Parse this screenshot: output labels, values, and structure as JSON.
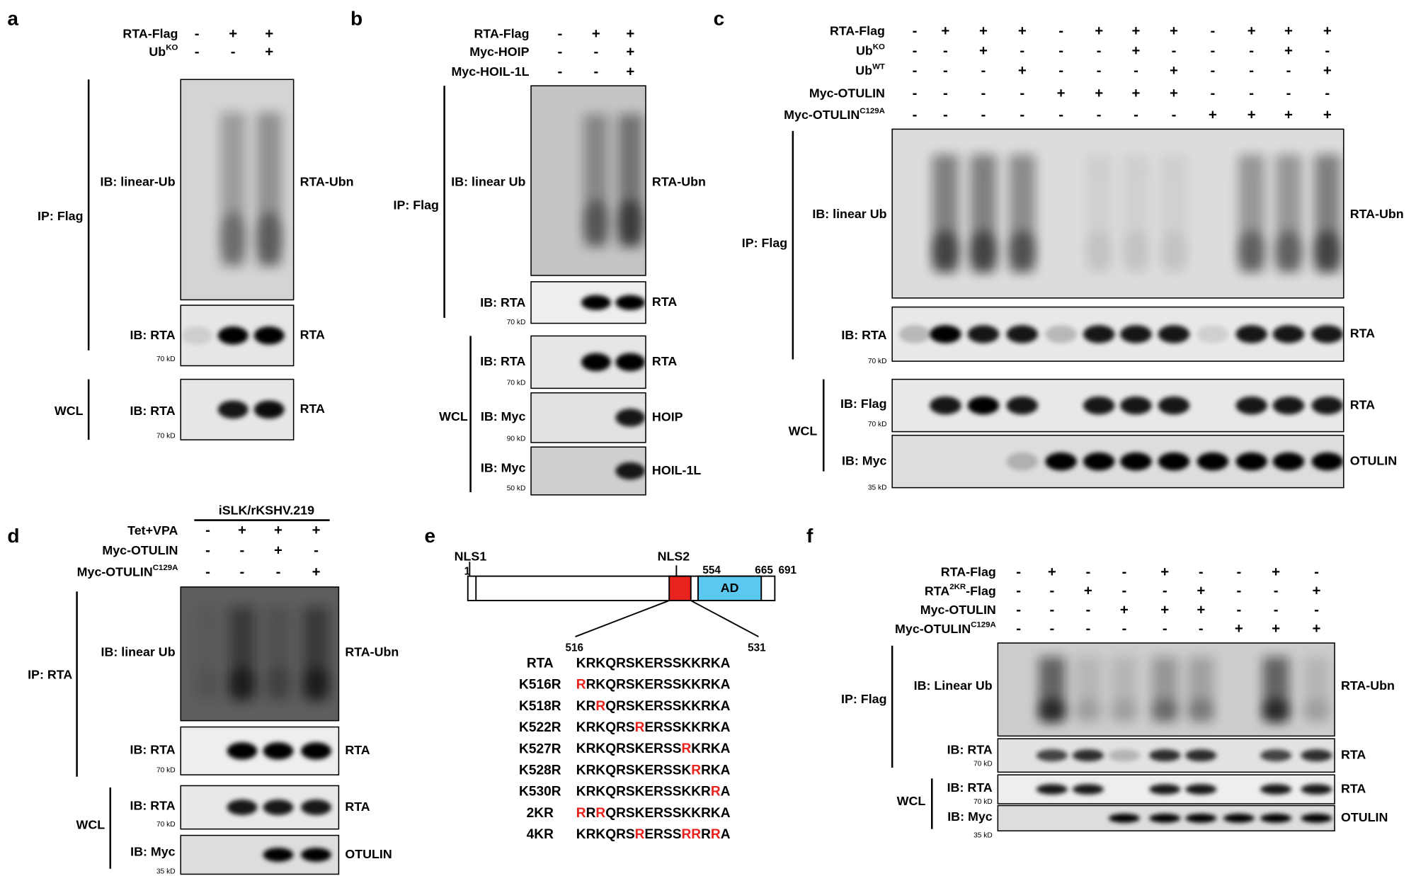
{
  "panels": [
    {
      "letter": "a",
      "conditions": [
        {
          "label": "RTA-Flag",
          "signs": [
            "-",
            "+",
            "+"
          ]
        },
        {
          "label": "Ub",
          "sup": "KO",
          "signs": [
            "-",
            "-",
            "+"
          ]
        }
      ],
      "blots": [
        {
          "ib": "IB: linear-Ub",
          "band": "RTA-Ubn"
        },
        {
          "ib": "IB: RTA",
          "kd": "70 kD",
          "band": "RTA"
        },
        {
          "ib": "IB: RTA",
          "kd": "70 kD",
          "band": "RTA"
        }
      ],
      "groups": [
        "IP: Flag",
        "WCL"
      ]
    },
    {
      "letter": "b",
      "conditions": [
        {
          "label": "RTA-Flag",
          "signs": [
            "-",
            "+",
            "+"
          ]
        },
        {
          "label": "Myc-HOIP",
          "signs": [
            "-",
            "-",
            "+"
          ]
        },
        {
          "label": "Myc-HOIL-1L",
          "signs": [
            "-",
            "-",
            "+"
          ]
        }
      ],
      "blots": [
        {
          "ib": "IB: linear Ub",
          "band": "RTA-Ubn"
        },
        {
          "ib": "IB: RTA",
          "kd": "70 kD",
          "band": "RTA"
        },
        {
          "ib": "IB: RTA",
          "kd": "70 kD",
          "band": "RTA"
        },
        {
          "ib": "IB: Myc",
          "kd": "90 kD",
          "band": "HOIP"
        },
        {
          "ib": "IB: Myc",
          "kd": "50 kD",
          "band": "HOIL-1L"
        }
      ],
      "groups": [
        "IP: Flag",
        "WCL"
      ]
    },
    {
      "letter": "c",
      "conditions": [
        {
          "label": "RTA-Flag",
          "signs": [
            "-",
            "+",
            "+",
            "+",
            "-",
            "+",
            "+",
            "+",
            "-",
            "+",
            "+",
            "+"
          ]
        },
        {
          "label": "Ub",
          "sup": "KO",
          "signs": [
            "-",
            "-",
            "+",
            "-",
            "-",
            "-",
            "+",
            "-",
            "-",
            "-",
            "+",
            "-"
          ]
        },
        {
          "label": "Ub",
          "sup": "WT",
          "signs": [
            "-",
            "-",
            "-",
            "+",
            "-",
            "-",
            "-",
            "+",
            "-",
            "-",
            "-",
            "+"
          ]
        },
        {
          "label": "Myc-OTULIN",
          "signs": [
            "-",
            "-",
            "-",
            "-",
            "+",
            "+",
            "+",
            "+",
            "-",
            "-",
            "-",
            "-"
          ]
        },
        {
          "label": "Myc-OTULIN",
          "sup": "C129A",
          "signs": [
            "-",
            "-",
            "-",
            "-",
            "-",
            "-",
            "-",
            "-",
            "+",
            "+",
            "+",
            "+"
          ]
        }
      ],
      "blots": [
        {
          "ib": "IB: linear Ub",
          "band": "RTA-Ubn"
        },
        {
          "ib": "IB: RTA",
          "kd": "70 kD",
          "band": "RTA"
        },
        {
          "ib": "IB: Flag",
          "kd": "70 kD",
          "band": "RTA"
        },
        {
          "ib": "IB: Myc",
          "kd": "35 kD",
          "band": "OTULIN"
        }
      ],
      "groups": [
        "IP: Flag",
        "WCL"
      ]
    },
    {
      "letter": "d",
      "header": "iSLK/rKSHV.219",
      "conditions": [
        {
          "label": "Tet+VPA",
          "signs": [
            "-",
            "+",
            "+",
            "+"
          ]
        },
        {
          "label": "Myc-OTULIN",
          "signs": [
            "-",
            "-",
            "+",
            "-"
          ]
        },
        {
          "label": "Myc-OTULIN",
          "sup": "C129A",
          "signs": [
            "-",
            "-",
            "-",
            "+"
          ]
        }
      ],
      "blots": [
        {
          "ib": "IB: linear Ub",
          "band": "RTA-Ubn"
        },
        {
          "ib": "IB: RTA",
          "kd": "70 kD",
          "band": "RTA"
        },
        {
          "ib": "IB: RTA",
          "kd": "70 kD",
          "band": "RTA"
        },
        {
          "ib": "IB: Myc",
          "kd": "35 kD",
          "band": "OTULIN"
        }
      ],
      "groups": [
        "IP: RTA",
        "WCL"
      ]
    },
    {
      "letter": "e",
      "domains": {
        "nls1": "NLS1",
        "nls2": "NLS2",
        "ad": "AD"
      },
      "positions": [
        1,
        554,
        665,
        691
      ],
      "range": [
        516,
        531
      ],
      "sequences": [
        {
          "name": "RTA",
          "parts": [
            {
              "text": "KRKQRSKERSSKKRKA"
            }
          ]
        },
        {
          "name": "K516R",
          "parts": [
            {
              "text": "R",
              "mutant": true
            },
            {
              "text": "RKQRSKERSSKKRKA"
            }
          ]
        },
        {
          "name": "K518R",
          "parts": [
            {
              "text": "KR"
            },
            {
              "text": "R",
              "mutant": true
            },
            {
              "text": "QRSKERSSKKRKA"
            }
          ]
        },
        {
          "name": "K522R",
          "parts": [
            {
              "text": "KRKQRS"
            },
            {
              "text": "R",
              "mutant": true
            },
            {
              "text": "ERSSKKRKA"
            }
          ]
        },
        {
          "name": "K527R",
          "parts": [
            {
              "text": "KRKQRSKERSS"
            },
            {
              "text": "R",
              "mutant": true
            },
            {
              "text": "KRKA"
            }
          ]
        },
        {
          "name": "K528R",
          "parts": [
            {
              "text": "KRKQRSKERSSK"
            },
            {
              "text": "R",
              "mutant": true
            },
            {
              "text": "RKA"
            }
          ]
        },
        {
          "name": "K530R",
          "parts": [
            {
              "text": "KRKQRSKERSSKKR"
            },
            {
              "text": "R",
              "mutant": true
            },
            {
              "text": "A"
            }
          ]
        },
        {
          "name": "2KR",
          "parts": [
            {
              "text": "R",
              "mutant": true
            },
            {
              "text": "R"
            },
            {
              "text": "R",
              "mutant": true
            },
            {
              "text": "QRSKERSSKKRKA"
            }
          ]
        },
        {
          "name": "4KR",
          "parts": [
            {
              "text": "KRKQRS"
            },
            {
              "text": "R",
              "mutant": true
            },
            {
              "text": "ERSS"
            },
            {
              "text": "RR",
              "mutant": true
            },
            {
              "text": "R"
            },
            {
              "text": "R",
              "mutant": true
            },
            {
              "text": "A"
            }
          ]
        }
      ]
    },
    {
      "letter": "f",
      "conditions": [
        {
          "label": "RTA-Flag",
          "signs": [
            "-",
            "+",
            "-",
            "-",
            "+",
            "-",
            "-",
            "+",
            "-"
          ]
        },
        {
          "label": "RTA",
          "sup": "2KR",
          "suffix": "-Flag",
          "signs": [
            "-",
            "-",
            "+",
            "-",
            "-",
            "+",
            "-",
            "-",
            "+"
          ]
        },
        {
          "label": "Myc-OTULIN",
          "signs": [
            "-",
            "-",
            "-",
            "+",
            "+",
            "+",
            "-",
            "-",
            "-"
          ]
        },
        {
          "label": "Myc-OTULIN",
          "sup": "C129A",
          "signs": [
            "-",
            "-",
            "-",
            "-",
            "-",
            "-",
            "+",
            "+",
            "+"
          ]
        }
      ],
      "blots": [
        {
          "ib": "IB: Linear Ub",
          "band": "RTA-Ubn"
        },
        {
          "ib": "IB: RTA",
          "kd": "70 kD",
          "band": "RTA"
        },
        {
          "ib": "IB: RTA",
          "kd": "70 kD",
          "band": "RTA"
        },
        {
          "ib": "IB: Myc",
          "kd": "35 kD",
          "band": "OTULIN"
        }
      ],
      "groups": [
        "IP: Flag",
        "WCL"
      ]
    }
  ]
}
